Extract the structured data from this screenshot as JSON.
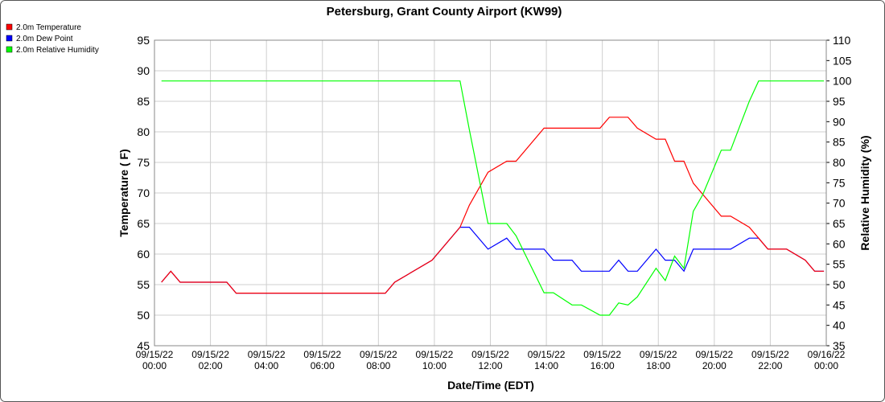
{
  "chart_data": {
    "type": "line",
    "title": "Petersburg, Grant County Airport (KW99)",
    "xlabel": "Date/Time (EDT)",
    "ylabel": "Temperature ( F)",
    "y2label": "Relative Humidity (%)",
    "x": [
      "09/15/22 00:15",
      "09/15/22 00:35",
      "09/15/22 00:55",
      "09/15/22 02:35",
      "09/15/22 02:55",
      "09/15/22 08:15",
      "09/15/22 08:35",
      "09/15/22 09:55",
      "09/15/22 10:55",
      "09/15/22 11:15",
      "09/15/22 11:55",
      "09/15/22 12:35",
      "09/15/22 12:55",
      "09/15/22 13:55",
      "09/15/22 14:15",
      "09/15/22 14:55",
      "09/15/22 15:15",
      "09/15/22 15:55",
      "09/15/22 16:15",
      "09/15/22 16:35",
      "09/15/22 16:55",
      "09/15/22 17:15",
      "09/15/22 17:55",
      "09/15/22 18:15",
      "09/15/22 18:35",
      "09/15/22 18:55",
      "09/15/22 19:15",
      "09/15/22 19:35",
      "09/15/22 20:15",
      "09/15/22 20:35",
      "09/15/22 21:15",
      "09/15/22 21:35",
      "09/15/22 21:55",
      "09/15/22 22:35",
      "09/15/22 23:15",
      "09/15/22 23:35",
      "09/15/22 23:55"
    ],
    "series": [
      {
        "name": "2.0m Dew Point",
        "color": "#0000ff",
        "values": [
          55.4,
          57.2,
          55.4,
          55.4,
          53.6,
          53.6,
          55.4,
          59.0,
          64.4,
          64.4,
          60.8,
          62.6,
          60.8,
          60.8,
          59.0,
          59.0,
          57.2,
          57.2,
          57.2,
          59.0,
          57.2,
          57.2,
          60.8,
          59.0,
          59.0,
          57.2,
          60.8,
          60.8,
          60.8,
          60.8,
          62.6,
          62.6,
          60.8,
          60.8,
          59.0,
          57.2,
          57.2
        ]
      },
      {
        "name": "2.0m Temperature",
        "color": "#ff0000",
        "values": [
          55.4,
          57.2,
          55.4,
          55.4,
          53.6,
          53.6,
          55.4,
          59.0,
          64.4,
          68.0,
          73.4,
          75.2,
          75.2,
          80.6,
          80.6,
          80.6,
          80.6,
          80.6,
          82.4,
          82.4,
          82.4,
          80.6,
          78.8,
          78.8,
          75.2,
          75.2,
          71.6,
          69.8,
          66.2,
          66.2,
          64.4,
          62.6,
          60.8,
          60.8,
          59.0,
          57.2,
          57.2
        ]
      },
      {
        "name": "2.0m Relative Humidity",
        "color": "#00ff00",
        "axis": "y2",
        "values": [
          100,
          100,
          100,
          100,
          100,
          100,
          100,
          100,
          100,
          88,
          65,
          65,
          62,
          48,
          48,
          45,
          45,
          42.5,
          42.5,
          45.5,
          45,
          47,
          54,
          51,
          57,
          54,
          68,
          72,
          83,
          83,
          95,
          100,
          100,
          100,
          100,
          100,
          100
        ]
      }
    ],
    "legend_order": [
      1,
      0,
      2
    ],
    "xlim": [
      "09/15/22 00:00",
      "09/16/22 00:00"
    ],
    "xticks": [
      "09/15/22 00:00",
      "09/15/22 02:00",
      "09/15/22 04:00",
      "09/15/22 06:00",
      "09/15/22 08:00",
      "09/15/22 10:00",
      "09/15/22 12:00",
      "09/15/22 14:00",
      "09/15/22 16:00",
      "09/15/22 18:00",
      "09/15/22 20:00",
      "09/15/22 22:00",
      "09/16/22 00:00"
    ],
    "ylim": [
      45,
      95
    ],
    "yticks": [
      45,
      50,
      55,
      60,
      65,
      70,
      75,
      80,
      85,
      90,
      95
    ],
    "y2lim": [
      35,
      110
    ],
    "y2ticks": [
      35,
      40,
      45,
      50,
      55,
      60,
      65,
      70,
      75,
      80,
      85,
      90,
      95,
      100,
      105,
      110
    ],
    "grid": true
  }
}
